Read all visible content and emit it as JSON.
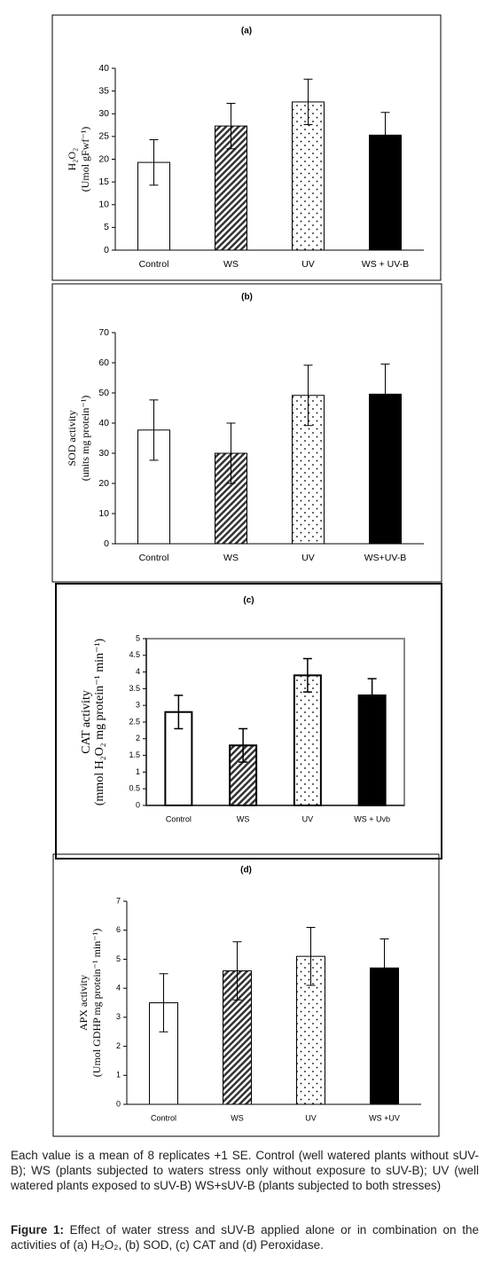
{
  "chart_data": [
    {
      "type": "bar",
      "title": "(a)",
      "ylabel": [
        "H₂O₂",
        "(Umol gFwf⁻¹)"
      ],
      "categories": [
        "Control",
        "WS",
        "UV",
        "WS + UV-B"
      ],
      "values": [
        19.3,
        27.3,
        32.6,
        25.3
      ],
      "errors": [
        5,
        5,
        5,
        5
      ],
      "fills": [
        "white",
        "hatch",
        "dots",
        "black"
      ],
      "ylim": [
        0,
        40
      ],
      "yticks": [
        0,
        5,
        10,
        15,
        20,
        25,
        30,
        35,
        40
      ],
      "grid": false
    },
    {
      "type": "bar",
      "title": "(b)",
      "ylabel": [
        "SOD activity",
        "(units mg protein⁻¹)"
      ],
      "categories": [
        "Control",
        "WS",
        "UV",
        "WS+UV-B"
      ],
      "values": [
        37.7,
        30,
        49.2,
        49.6
      ],
      "errors": [
        10,
        10,
        10,
        10
      ],
      "fills": [
        "white",
        "hatch",
        "dots",
        "black"
      ],
      "ylim": [
        0,
        70
      ],
      "yticks": [
        0,
        10,
        20,
        30,
        40,
        50,
        60,
        70
      ],
      "grid": false
    },
    {
      "type": "bar",
      "title": "(c)",
      "ylabel": [
        "CAT activity",
        "(mmol H₂O₂ mg protein⁻¹ min⁻¹)"
      ],
      "categories": [
        "Control",
        "WS",
        "UV",
        "WS + Uvb"
      ],
      "values": [
        2.8,
        1.8,
        3.9,
        3.3
      ],
      "errors": [
        0.5,
        0.5,
        0.5,
        0.5
      ],
      "fills": [
        "white",
        "hatch",
        "dots",
        "black"
      ],
      "ylim": [
        0,
        5
      ],
      "yticks": [
        0,
        0.5,
        1,
        1.5,
        2,
        2.5,
        3,
        3.5,
        4,
        4.5,
        5
      ],
      "grid": false
    },
    {
      "type": "bar",
      "title": "(d)",
      "ylabel": [
        "APX activity",
        "(Umol GDHP mg protein⁻¹ min⁻¹)"
      ],
      "categories": [
        "Control",
        "WS",
        "UV",
        "WS +UV"
      ],
      "values": [
        3.5,
        4.6,
        5.1,
        4.7
      ],
      "errors": [
        1,
        1,
        1,
        1
      ],
      "fills": [
        "white",
        "hatch",
        "dots",
        "black"
      ],
      "ylim": [
        0,
        7
      ],
      "yticks": [
        0,
        1,
        2,
        3,
        4,
        5,
        6,
        7
      ],
      "grid": false
    }
  ],
  "note": "Each value is a mean of 8 replicates +1 SE. Control (well watered plants without sUV-B); WS (plants subjected to waters stress only without exposure to sUV-B); UV (well watered plants exposed to sUV-B) WS+sUV-B (plants subjected to both stresses)",
  "caption": {
    "label": "Figure 1:",
    "text": "Effect of water stress and sUV-B applied alone or in combination on the activities of (a) H₂O₂, (b) SOD, (c) CAT and (d) Peroxidase."
  }
}
